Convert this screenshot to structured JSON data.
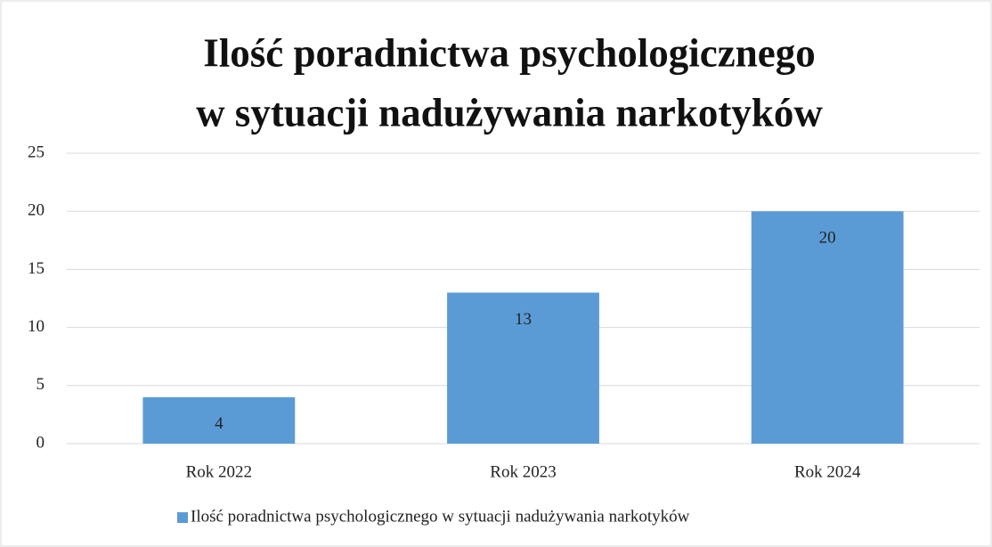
{
  "chart_data": {
    "type": "bar",
    "title": [
      "Ilość poradnictwa psychologicznego",
      "w sytuacji nadużywania narkotyków"
    ],
    "categories": [
      "Rok 2022",
      "Rok 2023",
      "Rok 2024"
    ],
    "series": [
      {
        "name": "Ilość poradnictwa psychologicznego w sytuacji nadużywania narkotyków",
        "color": "#5b9bd5",
        "values": [
          4,
          13,
          20
        ]
      }
    ],
    "ylim": [
      0,
      25
    ],
    "yticks": [
      0,
      5,
      10,
      15,
      20,
      25
    ],
    "grid": true,
    "legend": "bottom"
  }
}
